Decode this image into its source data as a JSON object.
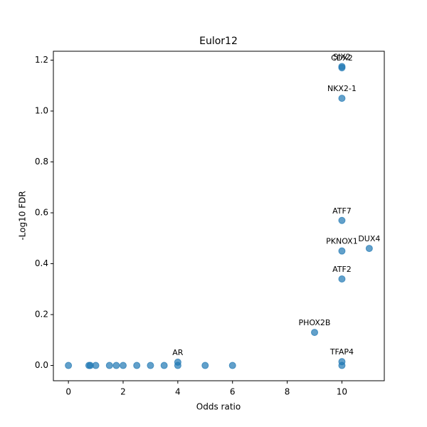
{
  "chart_data": {
    "type": "scatter",
    "title": "Eulor12",
    "xlabel": "Odds ratio",
    "ylabel": "-Log10 FDR",
    "color": "#1f77b4",
    "x": [
      0,
      0.75,
      0.8,
      1,
      1.5,
      1.75,
      2,
      2.5,
      3,
      3.5,
      4,
      5,
      6,
      10,
      4,
      10,
      9,
      10,
      10,
      11,
      10,
      10,
      10,
      10
    ],
    "values": [
      0,
      0,
      0,
      0,
      0,
      0,
      0,
      0,
      0,
      0,
      0,
      0,
      0,
      0,
      0.013,
      0.015,
      0.13,
      0.34,
      0.45,
      0.46,
      0.57,
      1.05,
      1.175,
      1.17
    ],
    "point_labels": [
      null,
      null,
      null,
      null,
      null,
      null,
      null,
      null,
      null,
      null,
      null,
      null,
      null,
      null,
      "AR",
      "TFAP4",
      "PHOX2B",
      "ATF2",
      "PKNOX1",
      "DUX4",
      "ATF7",
      "NKX2-1",
      "SIX2",
      "CDX2"
    ],
    "xlim": [
      -0.55,
      11.55
    ],
    "ylim": [
      -0.06,
      1.235
    ],
    "xticks": [
      0,
      2,
      4,
      6,
      8,
      10
    ],
    "yticks": [
      {
        "value": 0,
        "label": "0.0"
      },
      {
        "value": 0.2,
        "label": "0.2"
      },
      {
        "value": 0.4,
        "label": "0.4"
      },
      {
        "value": 0.6,
        "label": "0.6"
      },
      {
        "value": 0.8,
        "label": "0.8"
      },
      {
        "value": 1.0,
        "label": "1.0"
      },
      {
        "value": 1.2,
        "label": "1.2"
      }
    ],
    "grid": false
  }
}
